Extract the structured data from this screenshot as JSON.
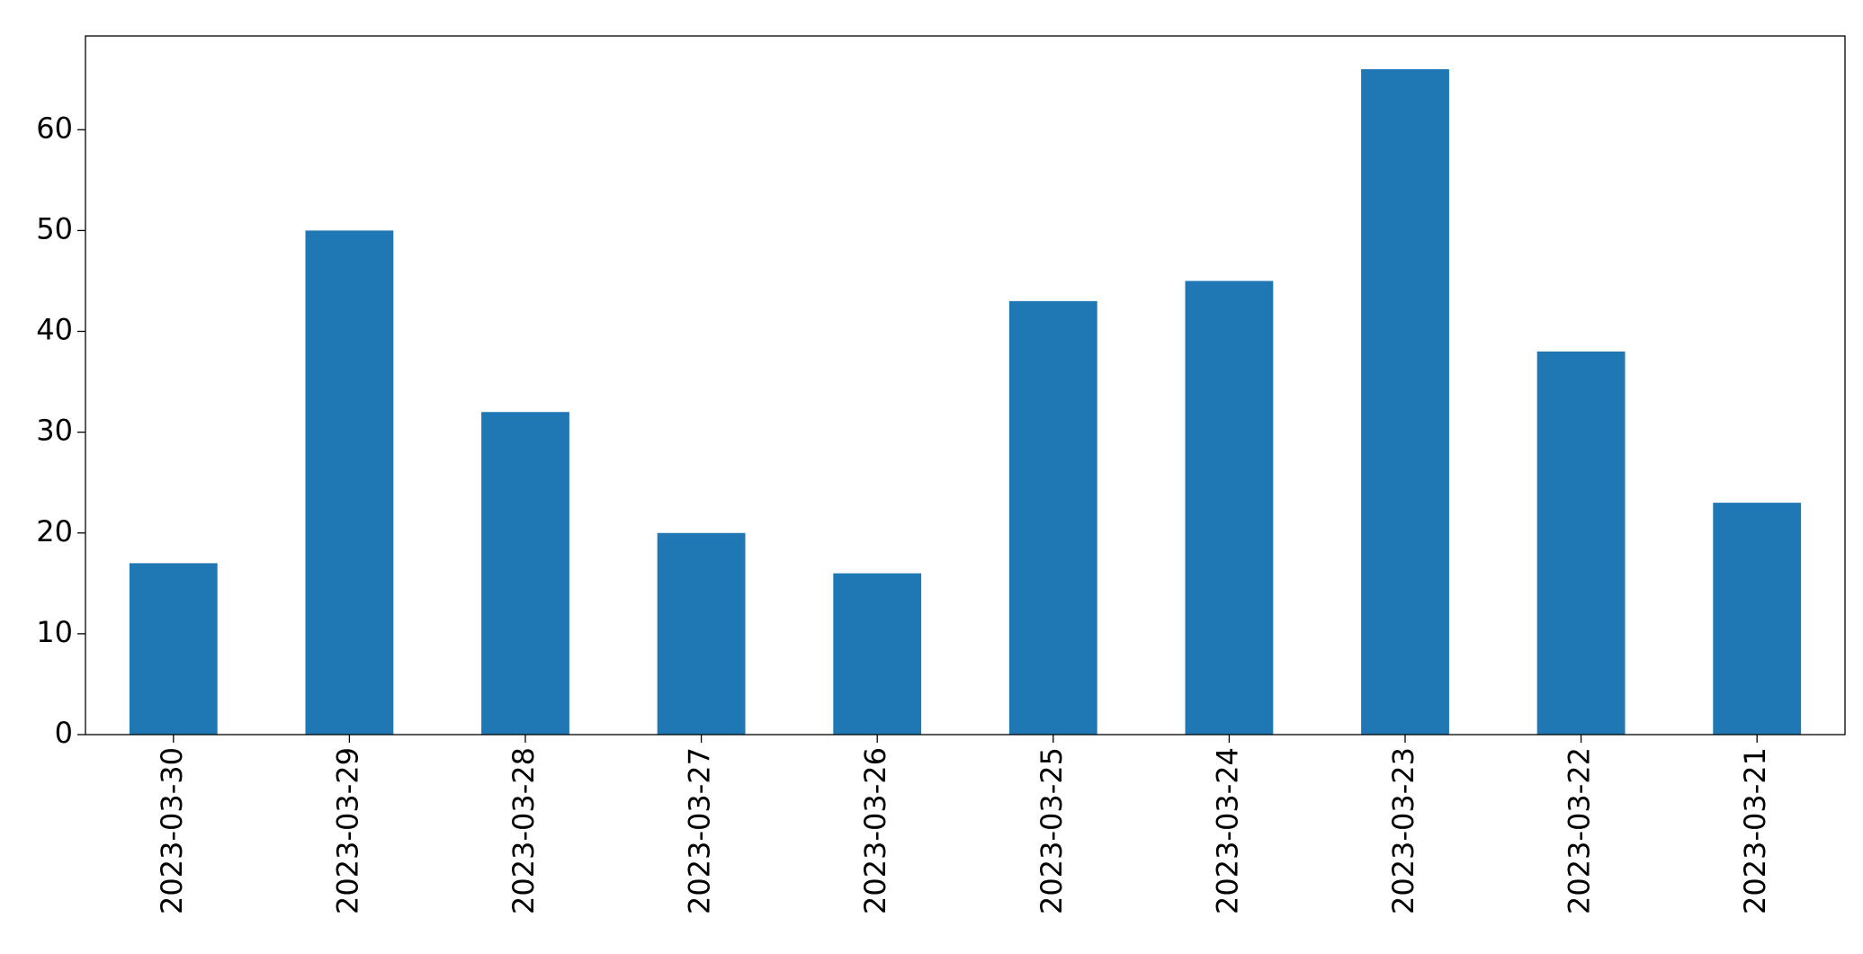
{
  "chart_data": {
    "type": "bar",
    "categories": [
      "2023-03-30",
      "2023-03-29",
      "2023-03-28",
      "2023-03-27",
      "2023-03-26",
      "2023-03-25",
      "2023-03-24",
      "2023-03-23",
      "2023-03-22",
      "2023-03-21"
    ],
    "values": [
      17,
      50,
      32,
      20,
      16,
      43,
      45,
      66,
      38,
      23
    ],
    "color": "#1f77b4",
    "ylim": [
      0,
      69.3
    ],
    "yticks": [
      0,
      10,
      20,
      30,
      40,
      50,
      60
    ],
    "grid": false
  }
}
